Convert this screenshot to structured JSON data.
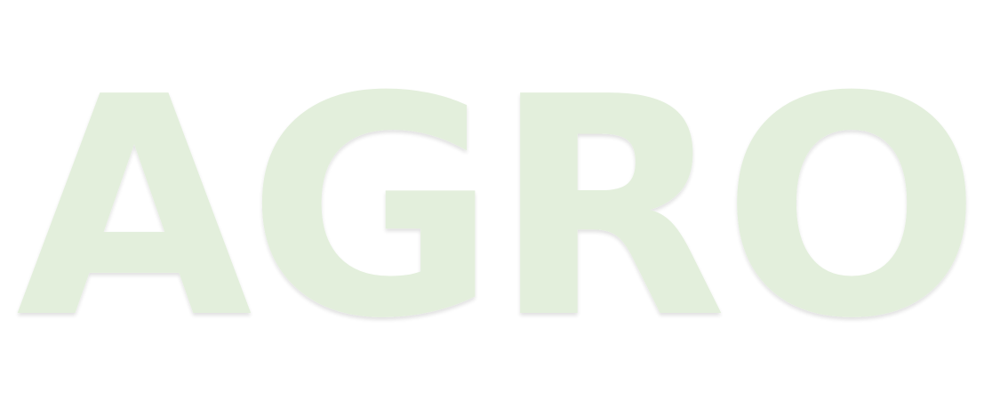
{
  "hero": {
    "watermark_text": "AGRO",
    "text_color": "#e3efdc",
    "shadow_color": "#d2dccd",
    "background_color": "#ffffff"
  }
}
